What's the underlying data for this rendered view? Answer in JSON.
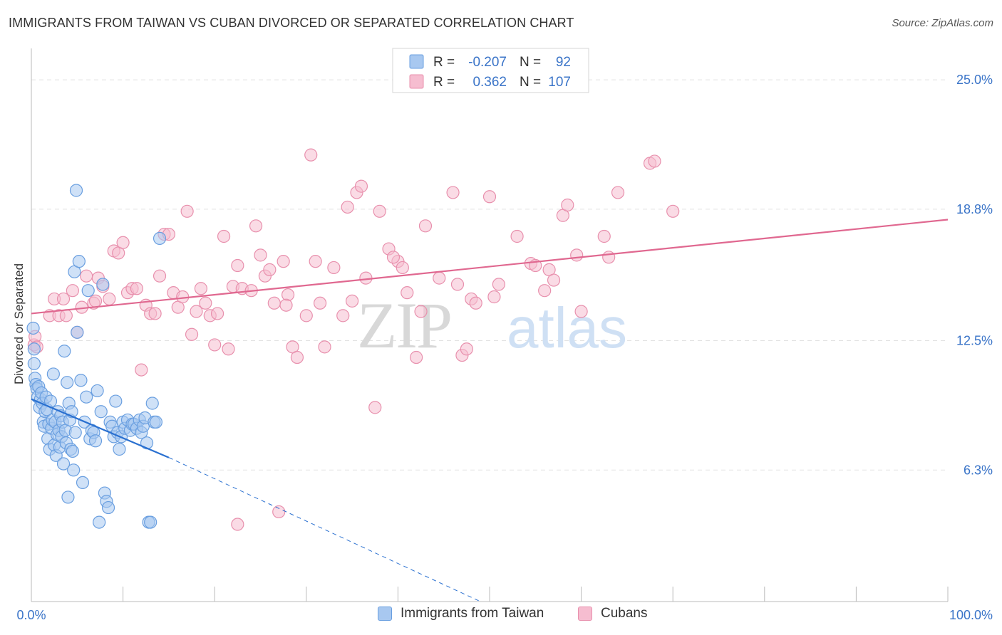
{
  "title": "IMMIGRANTS FROM TAIWAN VS CUBAN DIVORCED OR SEPARATED CORRELATION CHART",
  "source": "Source: ZipAtlas.com",
  "watermark": {
    "zip": "ZIP",
    "atlas": "atlas"
  },
  "colors": {
    "blue_fill": "#a8c8f0",
    "blue_stroke": "#6a9fe0",
    "blue_line": "#2a70d0",
    "blue_text": "#3a74c8",
    "pink_fill": "#f6bdd0",
    "pink_stroke": "#e890ad",
    "pink_line": "#e06890",
    "grid": "#e2e2e2",
    "axis_text": "#3a74c8"
  },
  "legend_box": {
    "rows": [
      {
        "r_label": "R =",
        "r_value": "-0.207",
        "n_label": "N =",
        "n_value": "92",
        "series": "taiwan"
      },
      {
        "r_label": "R =",
        "r_value": "0.362",
        "n_label": "N =",
        "n_value": "107",
        "series": "cubans"
      }
    ]
  },
  "legend_bottom": [
    {
      "label": "Immigrants from Taiwan",
      "series": "taiwan"
    },
    {
      "label": "Cubans",
      "series": "cubans"
    }
  ],
  "chart_data": {
    "type": "scatter",
    "title": "IMMIGRANTS FROM TAIWAN VS CUBAN DIVORCED OR SEPARATED CORRELATION CHART",
    "xlabel": "",
    "ylabel": "Divorced or Separated",
    "xlim": [
      0,
      100
    ],
    "ylim": [
      0,
      26.3
    ],
    "x_tick_labels": [
      "0.0%",
      "100.0%"
    ],
    "y_ticks": [
      6.3,
      12.5,
      18.8,
      25.0
    ],
    "y_tick_labels": [
      "6.3%",
      "12.5%",
      "18.8%",
      "25.0%"
    ],
    "grid": "horizontal dashed",
    "legend_position": "top-center",
    "series": [
      {
        "name": "Immigrants from Taiwan",
        "key": "taiwan",
        "r": -0.207,
        "n": 92,
        "trend": {
          "x0": 0,
          "y0": 9.7,
          "x1": 15,
          "y1": 6.9,
          "dashed_to_x": 49,
          "dashed_to_y": 0
        },
        "points": [
          [
            0.2,
            13.1
          ],
          [
            0.3,
            11.4
          ],
          [
            0.3,
            12.1
          ],
          [
            0.4,
            10.7
          ],
          [
            0.5,
            10.4
          ],
          [
            0.6,
            10.2
          ],
          [
            0.7,
            9.8
          ],
          [
            0.8,
            10.3
          ],
          [
            0.9,
            9.3
          ],
          [
            1.0,
            9.7
          ],
          [
            1.1,
            10.0
          ],
          [
            1.2,
            9.5
          ],
          [
            1.3,
            8.6
          ],
          [
            1.4,
            8.4
          ],
          [
            1.5,
            9.1
          ],
          [
            1.6,
            9.8
          ],
          [
            1.7,
            9.2
          ],
          [
            1.8,
            7.8
          ],
          [
            1.9,
            8.5
          ],
          [
            2.0,
            7.3
          ],
          [
            2.1,
            9.6
          ],
          [
            2.2,
            8.3
          ],
          [
            2.3,
            8.7
          ],
          [
            2.4,
            10.9
          ],
          [
            2.5,
            7.5
          ],
          [
            2.6,
            8.6
          ],
          [
            2.7,
            7.0
          ],
          [
            2.8,
            8.0
          ],
          [
            2.9,
            9.1
          ],
          [
            3.0,
            8.2
          ],
          [
            3.1,
            7.4
          ],
          [
            3.2,
            8.9
          ],
          [
            3.3,
            7.9
          ],
          [
            3.4,
            8.6
          ],
          [
            3.5,
            6.6
          ],
          [
            3.6,
            12.0
          ],
          [
            3.7,
            8.2
          ],
          [
            3.8,
            7.6
          ],
          [
            3.9,
            10.5
          ],
          [
            4.0,
            5.0
          ],
          [
            4.1,
            9.5
          ],
          [
            4.2,
            8.7
          ],
          [
            4.3,
            7.3
          ],
          [
            4.4,
            9.1
          ],
          [
            4.5,
            7.2
          ],
          [
            4.6,
            6.3
          ],
          [
            4.7,
            15.8
          ],
          [
            4.8,
            8.1
          ],
          [
            4.9,
            19.7
          ],
          [
            5.0,
            12.9
          ],
          [
            5.2,
            16.3
          ],
          [
            5.4,
            10.6
          ],
          [
            5.6,
            5.7
          ],
          [
            5.8,
            8.6
          ],
          [
            6.0,
            9.8
          ],
          [
            6.2,
            14.9
          ],
          [
            6.4,
            7.8
          ],
          [
            6.6,
            8.2
          ],
          [
            6.8,
            8.1
          ],
          [
            7.0,
            7.7
          ],
          [
            7.2,
            10.1
          ],
          [
            7.4,
            3.8
          ],
          [
            7.6,
            9.1
          ],
          [
            7.8,
            15.2
          ],
          [
            8.0,
            5.2
          ],
          [
            8.2,
            4.8
          ],
          [
            8.4,
            4.5
          ],
          [
            8.6,
            8.6
          ],
          [
            8.8,
            8.4
          ],
          [
            9.0,
            7.9
          ],
          [
            9.2,
            9.6
          ],
          [
            9.4,
            8.1
          ],
          [
            9.6,
            7.3
          ],
          [
            9.8,
            7.9
          ],
          [
            10.0,
            8.6
          ],
          [
            10.2,
            8.3
          ],
          [
            10.5,
            8.7
          ],
          [
            10.8,
            8.2
          ],
          [
            11.0,
            8.5
          ],
          [
            11.2,
            8.5
          ],
          [
            11.5,
            8.3
          ],
          [
            11.8,
            8.7
          ],
          [
            12.0,
            8.1
          ],
          [
            12.2,
            8.4
          ],
          [
            12.4,
            8.8
          ],
          [
            12.6,
            7.6
          ],
          [
            12.8,
            3.8
          ],
          [
            13.0,
            3.8
          ],
          [
            13.2,
            9.5
          ],
          [
            13.4,
            8.6
          ],
          [
            13.6,
            8.6
          ],
          [
            14.0,
            17.4
          ]
        ]
      },
      {
        "name": "Cubans",
        "key": "cubans",
        "r": 0.362,
        "n": 107,
        "trend": {
          "x0": 0,
          "y0": 13.8,
          "x1": 100,
          "y1": 18.3
        },
        "points": [
          [
            0.3,
            12.3
          ],
          [
            0.4,
            12.7
          ],
          [
            0.6,
            12.2
          ],
          [
            2.0,
            13.7
          ],
          [
            2.5,
            14.5
          ],
          [
            3.0,
            13.7
          ],
          [
            3.5,
            14.5
          ],
          [
            3.8,
            13.7
          ],
          [
            4.5,
            14.9
          ],
          [
            5.0,
            12.9
          ],
          [
            5.5,
            14.1
          ],
          [
            6.0,
            15.6
          ],
          [
            6.8,
            14.3
          ],
          [
            7.0,
            14.4
          ],
          [
            7.3,
            15.5
          ],
          [
            7.8,
            15.1
          ],
          [
            8.5,
            14.5
          ],
          [
            9.0,
            16.8
          ],
          [
            9.5,
            16.7
          ],
          [
            10.0,
            17.2
          ],
          [
            10.5,
            14.8
          ],
          [
            11.0,
            15.0
          ],
          [
            11.5,
            15.0
          ],
          [
            12.0,
            11.1
          ],
          [
            12.5,
            14.2
          ],
          [
            13.0,
            13.8
          ],
          [
            13.5,
            13.8
          ],
          [
            14.0,
            15.6
          ],
          [
            14.5,
            17.6
          ],
          [
            15.0,
            17.6
          ],
          [
            15.5,
            14.8
          ],
          [
            16.0,
            14.1
          ],
          [
            16.5,
            14.6
          ],
          [
            17.0,
            18.7
          ],
          [
            17.5,
            12.8
          ],
          [
            18.0,
            13.9
          ],
          [
            18.5,
            15.0
          ],
          [
            19.0,
            14.3
          ],
          [
            19.5,
            13.7
          ],
          [
            20.0,
            12.3
          ],
          [
            20.3,
            13.8
          ],
          [
            21.0,
            17.5
          ],
          [
            21.5,
            12.1
          ],
          [
            22.0,
            15.1
          ],
          [
            22.5,
            16.1
          ],
          [
            23.0,
            15.0
          ],
          [
            24.0,
            14.9
          ],
          [
            24.5,
            18.0
          ],
          [
            25.0,
            16.6
          ],
          [
            25.5,
            15.6
          ],
          [
            26.0,
            15.9
          ],
          [
            26.5,
            14.3
          ],
          [
            27.0,
            4.3
          ],
          [
            27.5,
            16.3
          ],
          [
            28.0,
            14.7
          ],
          [
            28.5,
            12.2
          ],
          [
            29.0,
            11.7
          ],
          [
            30.0,
            13.7
          ],
          [
            30.5,
            21.4
          ],
          [
            31.0,
            16.3
          ],
          [
            31.5,
            14.3
          ],
          [
            32.0,
            12.2
          ],
          [
            33.0,
            16.0
          ],
          [
            34.0,
            13.7
          ],
          [
            34.5,
            18.9
          ],
          [
            35.0,
            14.4
          ],
          [
            35.5,
            19.6
          ],
          [
            36.0,
            19.9
          ],
          [
            36.5,
            15.5
          ],
          [
            37.5,
            9.3
          ],
          [
            38.0,
            18.7
          ],
          [
            39.0,
            16.9
          ],
          [
            40.0,
            16.3
          ],
          [
            40.5,
            16.0
          ],
          [
            41.0,
            14.8
          ],
          [
            42.0,
            11.7
          ],
          [
            42.5,
            13.9
          ],
          [
            43.0,
            18.0
          ],
          [
            44.5,
            15.5
          ],
          [
            46.0,
            19.6
          ],
          [
            46.5,
            15.2
          ],
          [
            47.0,
            11.8
          ],
          [
            47.5,
            12.1
          ],
          [
            48.0,
            14.5
          ],
          [
            48.5,
            14.3
          ],
          [
            50.0,
            19.4
          ],
          [
            50.5,
            14.6
          ],
          [
            51.0,
            15.2
          ],
          [
            53.0,
            17.5
          ],
          [
            54.5,
            16.2
          ],
          [
            55.0,
            16.1
          ],
          [
            56.0,
            14.9
          ],
          [
            56.5,
            15.9
          ],
          [
            57.0,
            15.4
          ],
          [
            58.0,
            18.5
          ],
          [
            58.5,
            19.0
          ],
          [
            59.5,
            16.6
          ],
          [
            60.0,
            13.9
          ],
          [
            62.5,
            17.5
          ],
          [
            63.0,
            16.5
          ],
          [
            64.0,
            19.6
          ],
          [
            67.5,
            21.0
          ],
          [
            68.0,
            21.1
          ],
          [
            70.0,
            18.7
          ],
          [
            22.5,
            3.7
          ],
          [
            27.8,
            14.2
          ],
          [
            39.5,
            16.5
          ]
        ]
      }
    ]
  }
}
